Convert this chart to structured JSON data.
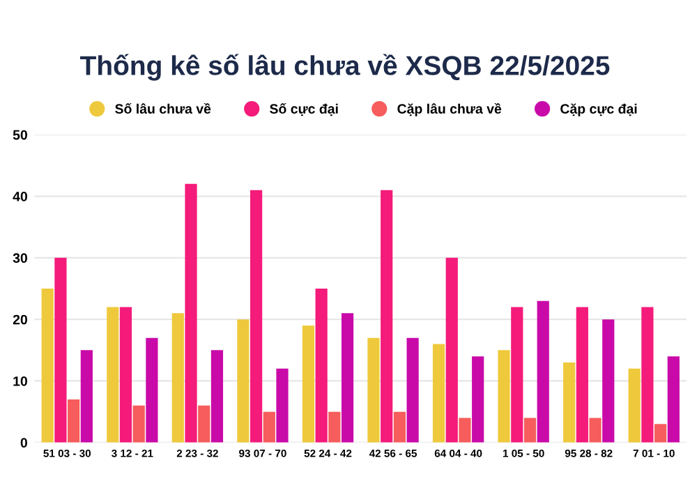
{
  "chart_data": {
    "type": "bar",
    "title": "Thống kê số lâu chưa về XSQB 22/5/2025",
    "categories": [
      "51 03 - 30",
      "3 12 - 21",
      "2 23 - 32",
      "93 07 - 70",
      "52 24 - 42",
      "42 56 - 65",
      "64 04 - 40",
      "1 05 - 50",
      "95 28 - 82",
      "7 01 - 10"
    ],
    "series": [
      {
        "name": "Số lâu chưa về",
        "color": "#efc93c",
        "values": [
          25,
          22,
          21,
          20,
          19,
          17,
          16,
          15,
          13,
          12
        ]
      },
      {
        "name": "Số cực đại",
        "color": "#f41b7a",
        "values": [
          30,
          22,
          42,
          41,
          25,
          41,
          30,
          22,
          22,
          22
        ]
      },
      {
        "name": "Cặp lâu chưa về",
        "color": "#f65d5c",
        "values": [
          7,
          6,
          6,
          5,
          5,
          5,
          4,
          4,
          4,
          3
        ]
      },
      {
        "name": "Cặp cực đại",
        "color": "#c90aa9",
        "values": [
          15,
          17,
          15,
          12,
          21,
          17,
          14,
          23,
          20,
          14
        ]
      }
    ],
    "ylim": [
      0,
      50
    ],
    "yticks": [
      0,
      10,
      20,
      30,
      40,
      50
    ],
    "grid": "y",
    "legend": "top"
  }
}
